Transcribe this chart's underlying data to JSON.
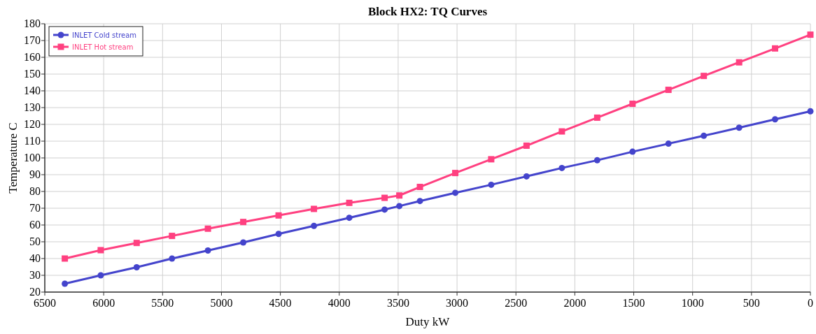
{
  "chart_data": {
    "type": "line",
    "title": "Block HX2: TQ Curves",
    "xlabel": "Duty kW",
    "ylabel": "Temperature C",
    "xlim": [
      6500,
      0
    ],
    "xticks": [
      6500,
      6000,
      5500,
      5000,
      4500,
      4000,
      3500,
      3000,
      2500,
      2000,
      1500,
      1000,
      500,
      0
    ],
    "ylim": [
      20,
      180
    ],
    "yticks": [
      20,
      30,
      40,
      50,
      60,
      70,
      80,
      90,
      100,
      110,
      120,
      130,
      140,
      150,
      160,
      170,
      180
    ],
    "grid": true,
    "legend": "top left",
    "line_style": "solid",
    "x": [
      6330,
      6025,
      5720,
      5420,
      5115,
      4815,
      4515,
      4215,
      3915,
      3615,
      3490,
      3315,
      3015,
      2710,
      2410,
      2110,
      1810,
      1510,
      1205,
      905,
      605,
      300,
      0
    ],
    "series": [
      {
        "name": "INLET Cold stream",
        "color": "#4444cc",
        "marker": "circle",
        "values": [
          25,
          30,
          34.8,
          40,
          44.8,
          49.6,
          54.7,
          59.5,
          64.3,
          69.2,
          71.3,
          74.3,
          79.2,
          84,
          89,
          94,
          98.6,
          103.7,
          108.5,
          113.2,
          118,
          123,
          127.8
        ]
      },
      {
        "name": "INLET Hot stream",
        "color": "#ff4080",
        "marker": "square",
        "values": [
          40,
          45,
          49.3,
          53.5,
          57.8,
          61.8,
          65.7,
          69.6,
          73.2,
          76.2,
          77.6,
          82.7,
          91,
          99.2,
          107.3,
          115.8,
          124,
          132.3,
          140.6,
          148.9,
          157,
          165.3,
          173.5
        ]
      }
    ]
  }
}
